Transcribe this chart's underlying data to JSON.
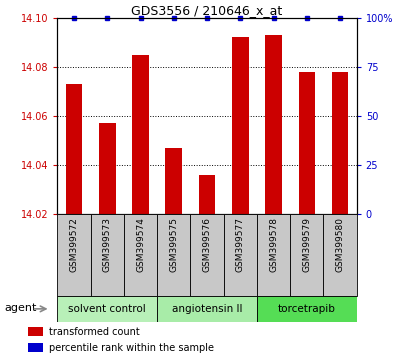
{
  "title": "GDS3556 / 210646_x_at",
  "samples": [
    "GSM399572",
    "GSM399573",
    "GSM399574",
    "GSM399575",
    "GSM399576",
    "GSM399577",
    "GSM399578",
    "GSM399579",
    "GSM399580"
  ],
  "bar_values": [
    14.073,
    14.057,
    14.085,
    14.047,
    14.036,
    14.092,
    14.093,
    14.078,
    14.078
  ],
  "ylim_left": [
    14.02,
    14.1
  ],
  "ylim_right": [
    0,
    100
  ],
  "yticks_left": [
    14.02,
    14.04,
    14.06,
    14.08,
    14.1
  ],
  "yticks_right": [
    0,
    25,
    50,
    75,
    100
  ],
  "bar_color": "#cc0000",
  "dot_color": "#0000cc",
  "groups": [
    {
      "label": "solvent control",
      "indices": [
        0,
        1,
        2
      ],
      "color": "#b8f0b8"
    },
    {
      "label": "angiotensin II",
      "indices": [
        3,
        4,
        5
      ],
      "color": "#a8eca8"
    },
    {
      "label": "torcetrapib",
      "indices": [
        6,
        7,
        8
      ],
      "color": "#55dd55"
    }
  ],
  "agent_label": "agent",
  "legend_bar_label": "transformed count",
  "legend_dot_label": "percentile rank within the sample",
  "bar_width": 0.5,
  "xlabel_bg": "#c8c8c8",
  "fig_width": 4.1,
  "fig_height": 3.54,
  "dpi": 100
}
